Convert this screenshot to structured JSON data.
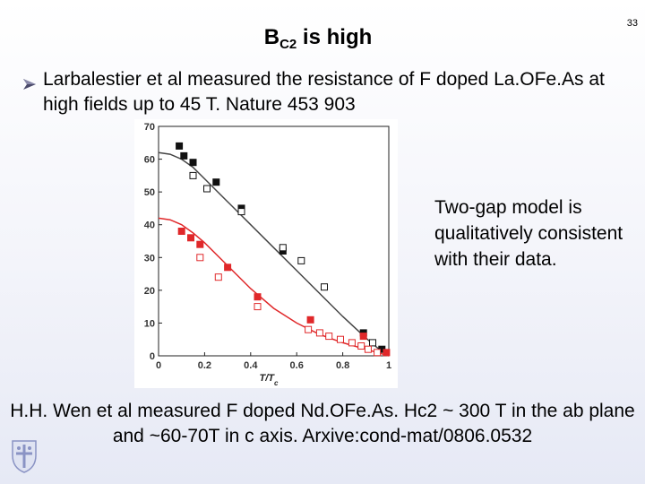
{
  "slide_number": "33",
  "title": {
    "main": "B",
    "sub": "C2",
    "rest": " is high"
  },
  "bullet": {
    "icon": "arrow-bullet-icon",
    "text": "Larbalestier et al  measured the resistance of F doped La.OFe.As at high fields up to 45 T. Nature 453 903"
  },
  "side_note": "Two-gap model is qualitatively consistent with their data.",
  "footer": "H.H. Wen et al measured F doped Nd.OFe.As. Hc2 ~ 300 T in the ab plane and ~60-70T in c axis. Arxive:cond-mat/0806.0532",
  "logo": "university-crest-icon",
  "chart_data": {
    "type": "scatter",
    "xlabel": "T/T_c",
    "ylabel": "",
    "xlim": [
      0,
      1
    ],
    "ylim": [
      0,
      70
    ],
    "xticks": [
      "0",
      "0.2",
      "0.4",
      "0.6",
      "0.8",
      "1"
    ],
    "yticks": [
      "0",
      "10",
      "20",
      "30",
      "40",
      "50",
      "60",
      "70"
    ],
    "grid": false,
    "series": [
      {
        "color": "#111111",
        "marker": "square-filled",
        "x": [
          0.09,
          0.11,
          0.15,
          0.25,
          0.36,
          0.54,
          0.89,
          0.97
        ],
        "y": [
          64,
          61,
          59,
          53,
          45,
          32,
          7,
          2
        ]
      },
      {
        "color": "#111111",
        "marker": "square-open",
        "x": [
          0.15,
          0.21,
          0.36,
          0.54,
          0.62,
          0.72,
          0.93
        ],
        "y": [
          55,
          51,
          44,
          33,
          29,
          21,
          4
        ]
      },
      {
        "color": "#e0282a",
        "marker": "square-filled",
        "x": [
          0.1,
          0.14,
          0.18,
          0.3,
          0.43,
          0.66,
          0.89,
          0.99
        ],
        "y": [
          38,
          36,
          34,
          27,
          18,
          11,
          6,
          1
        ]
      },
      {
        "color": "#e0282a",
        "marker": "square-open",
        "x": [
          0.18,
          0.26,
          0.43,
          0.65,
          0.7,
          0.74,
          0.79,
          0.84,
          0.88,
          0.91,
          0.95
        ],
        "y": [
          30,
          24,
          15,
          8,
          7,
          6,
          5,
          4,
          3,
          2,
          1
        ]
      },
      {
        "color": "#444444",
        "marker": "line",
        "x": [
          0,
          0.05,
          0.1,
          0.15,
          0.2,
          0.3,
          0.4,
          0.5,
          0.6,
          0.7,
          0.8,
          0.9,
          0.95,
          1.0
        ],
        "y": [
          62,
          61.5,
          60,
          57.5,
          54,
          47,
          40,
          33,
          26,
          19,
          12,
          5.5,
          2.5,
          0
        ]
      },
      {
        "color": "#e0282a",
        "marker": "line",
        "x": [
          0,
          0.05,
          0.1,
          0.15,
          0.2,
          0.3,
          0.4,
          0.5,
          0.6,
          0.7,
          0.8,
          0.9,
          0.95,
          1.0
        ],
        "y": [
          42,
          41.5,
          40,
          37.5,
          34.5,
          27.5,
          20.5,
          14.5,
          10,
          6.5,
          4,
          2,
          1,
          0
        ]
      }
    ]
  }
}
